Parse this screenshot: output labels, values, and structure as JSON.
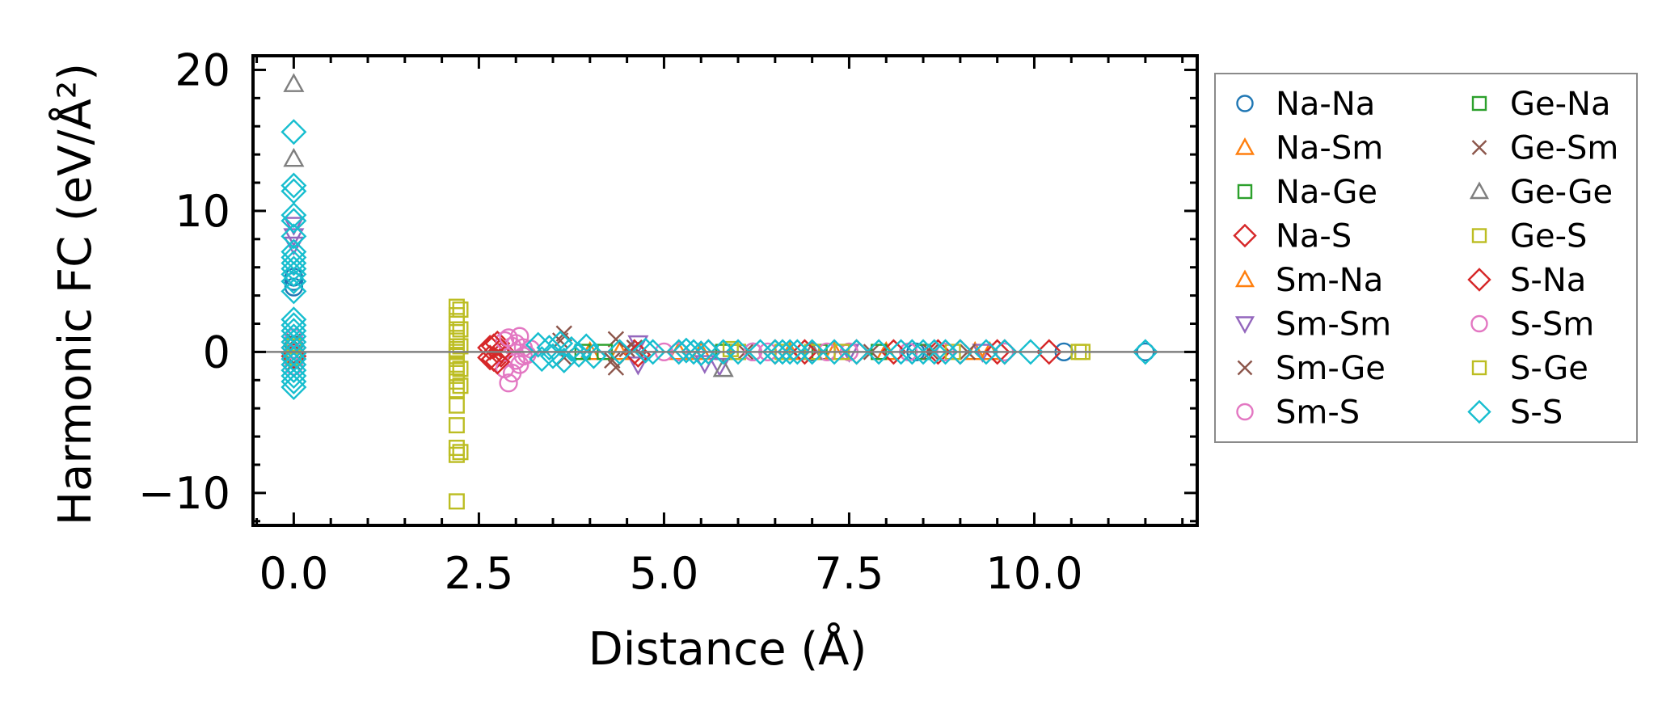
{
  "chart_data": {
    "type": "scatter",
    "title": "",
    "xlabel": "Distance (Å)",
    "ylabel": "Harmonic FC (eV/Å²)",
    "xlim": [
      -0.55,
      12.2
    ],
    "ylim": [
      -12.3,
      21.0
    ],
    "xticks": [
      "0.0",
      "2.5",
      "5.0",
      "7.5",
      "10.0"
    ],
    "yticks": [
      "−10",
      "0",
      "10",
      "20"
    ],
    "zero_line": true,
    "legend_position": "outside-right",
    "series": [
      {
        "name": "Na-Na",
        "marker": "circle",
        "color": "#1f77b4",
        "points": [
          [
            0,
            5.0
          ],
          [
            0,
            4.6
          ],
          [
            0,
            5.3
          ],
          [
            0,
            0.5
          ],
          [
            0,
            -0.5
          ],
          [
            6.2,
            0
          ],
          [
            7.0,
            0
          ],
          [
            8.4,
            0
          ],
          [
            10.4,
            0
          ],
          [
            11.5,
            0
          ]
        ]
      },
      {
        "name": "Na-Sm",
        "marker": "triangle-up",
        "color": "#ff7f0e",
        "points": [
          [
            4.0,
            0
          ],
          [
            5.5,
            0
          ],
          [
            6.7,
            0
          ],
          [
            8.0,
            0
          ],
          [
            9.2,
            0
          ]
        ]
      },
      {
        "name": "Na-Ge",
        "marker": "square",
        "color": "#2ca02c",
        "points": [
          [
            3.9,
            0
          ],
          [
            5.8,
            0
          ],
          [
            7.1,
            0
          ],
          [
            8.5,
            0
          ]
        ]
      },
      {
        "name": "Na-S",
        "marker": "diamond",
        "color": "#d62728",
        "points": [
          [
            0,
            0.3
          ],
          [
            0,
            -0.3
          ],
          [
            2.65,
            0.3
          ],
          [
            2.7,
            -0.5
          ],
          [
            2.75,
            0.6
          ],
          [
            2.8,
            -0.2
          ],
          [
            4.6,
            0
          ],
          [
            6.5,
            0
          ],
          [
            7.6,
            0
          ],
          [
            8.7,
            0
          ],
          [
            9.0,
            0
          ],
          [
            9.6,
            0
          ]
        ]
      },
      {
        "name": "Sm-Na",
        "marker": "triangle-up",
        "color": "#ff7f0e",
        "points": [
          [
            4.4,
            0
          ],
          [
            5.2,
            0
          ],
          [
            7.3,
            0
          ],
          [
            9.4,
            0
          ]
        ]
      },
      {
        "name": "Sm-Sm",
        "marker": "triangle-down",
        "color": "#9467bd",
        "points": [
          [
            0,
            9.0
          ],
          [
            0,
            8.2
          ],
          [
            0,
            7.6
          ],
          [
            4.65,
            0.6
          ],
          [
            4.65,
            -0.9
          ],
          [
            5.55,
            -0.8
          ],
          [
            5.75,
            -1.0
          ],
          [
            7.5,
            0
          ],
          [
            9.3,
            0
          ]
        ]
      },
      {
        "name": "Sm-Ge",
        "marker": "x",
        "color": "#8c564b",
        "points": [
          [
            0,
            0.8
          ],
          [
            0,
            -0.8
          ],
          [
            3.65,
            1.3
          ],
          [
            3.65,
            -0.4
          ],
          [
            4.35,
            0.9
          ],
          [
            4.35,
            -1.1
          ],
          [
            4.6,
            0.3
          ],
          [
            6.1,
            0
          ],
          [
            7.8,
            0
          ],
          [
            9.1,
            0
          ]
        ]
      },
      {
        "name": "Sm-S",
        "marker": "circle",
        "color": "#e377c2",
        "points": [
          [
            0,
            1.0
          ],
          [
            0,
            -1.0
          ],
          [
            2.85,
            0.8
          ],
          [
            2.85,
            -1.2
          ],
          [
            2.9,
            -2.2
          ],
          [
            2.95,
            0.4
          ],
          [
            3.0,
            -0.6
          ],
          [
            3.05,
            1.1
          ],
          [
            3.1,
            -0.3
          ],
          [
            3.2,
            0.2
          ],
          [
            5.2,
            0
          ],
          [
            6.4,
            0
          ],
          [
            7.2,
            0
          ],
          [
            8.3,
            0
          ],
          [
            9.6,
            0
          ]
        ]
      },
      {
        "name": "Ge-Na",
        "marker": "square",
        "color": "#2ca02c",
        "points": [
          [
            4.2,
            0
          ],
          [
            6.0,
            0
          ],
          [
            7.9,
            0
          ]
        ]
      },
      {
        "name": "Ge-Sm",
        "marker": "x",
        "color": "#8c564b",
        "points": [
          [
            3.6,
            0.8
          ],
          [
            4.3,
            -0.6
          ],
          [
            4.5,
            0.2
          ],
          [
            8.6,
            0
          ]
        ]
      },
      {
        "name": "Ge-Ge",
        "marker": "triangle-up",
        "color": "#7f7f7f",
        "points": [
          [
            0,
            19.0
          ],
          [
            0,
            13.7
          ],
          [
            5.8,
            -1.2
          ],
          [
            7.0,
            0
          ]
        ]
      },
      {
        "name": "Ge-S",
        "marker": "square",
        "color": "#bcbd22",
        "points": [
          [
            0,
            0.4
          ],
          [
            0,
            -0.4
          ],
          [
            2.2,
            3.2
          ],
          [
            2.2,
            2.6
          ],
          [
            2.2,
            2.0
          ],
          [
            2.2,
            1.4
          ],
          [
            2.2,
            0.8
          ],
          [
            2.2,
            0.2
          ],
          [
            2.2,
            -0.3
          ],
          [
            2.2,
            -0.9
          ],
          [
            2.2,
            -1.5
          ],
          [
            2.2,
            -2.1
          ],
          [
            2.2,
            -2.7
          ],
          [
            2.2,
            -3.8
          ],
          [
            2.2,
            -5.2
          ],
          [
            2.2,
            -6.8
          ],
          [
            2.2,
            -7.3
          ],
          [
            2.2,
            -10.6
          ],
          [
            2.2,
            0.0
          ],
          [
            6.0,
            0
          ],
          [
            7.0,
            0
          ],
          [
            8.9,
            0
          ],
          [
            10.6,
            0
          ]
        ]
      },
      {
        "name": "S-Na",
        "marker": "diamond",
        "color": "#d62728",
        "points": [
          [
            2.65,
            -0.4
          ],
          [
            2.7,
            0.4
          ],
          [
            2.75,
            -0.7
          ],
          [
            2.8,
            0.1
          ],
          [
            4.65,
            -0.2
          ],
          [
            5.6,
            0
          ],
          [
            6.9,
            0
          ],
          [
            8.1,
            0
          ],
          [
            9.5,
            0
          ],
          [
            10.2,
            0
          ]
        ]
      },
      {
        "name": "S-Sm",
        "marker": "circle",
        "color": "#e377c2",
        "points": [
          [
            2.9,
            1.0
          ],
          [
            2.95,
            -1.5
          ],
          [
            3.0,
            0.6
          ],
          [
            3.05,
            -0.9
          ],
          [
            3.1,
            0.3
          ],
          [
            3.15,
            -0.2
          ],
          [
            5.0,
            0
          ],
          [
            6.2,
            0
          ],
          [
            7.5,
            0
          ],
          [
            8.8,
            0
          ]
        ]
      },
      {
        "name": "S-Ge",
        "marker": "square",
        "color": "#bcbd22",
        "points": [
          [
            2.25,
            3.0
          ],
          [
            2.25,
            1.6
          ],
          [
            2.25,
            0.4
          ],
          [
            2.25,
            -1.2
          ],
          [
            2.25,
            -2.4
          ],
          [
            2.25,
            -7.1
          ],
          [
            5.9,
            0.2
          ],
          [
            6.6,
            0
          ],
          [
            7.4,
            0
          ],
          [
            10.65,
            0
          ]
        ]
      },
      {
        "name": "S-S",
        "marker": "diamond",
        "color": "#17becf",
        "points": [
          [
            0,
            15.6
          ],
          [
            0,
            11.8
          ],
          [
            0,
            11.4
          ],
          [
            0,
            9.7
          ],
          [
            0,
            9.3
          ],
          [
            0,
            8.2
          ],
          [
            0,
            7.1
          ],
          [
            0,
            6.7
          ],
          [
            0,
            6.3
          ],
          [
            0,
            5.9
          ],
          [
            0,
            5.5
          ],
          [
            0,
            5.0
          ],
          [
            0,
            4.3
          ],
          [
            0,
            2.3
          ],
          [
            0,
            1.9
          ],
          [
            0,
            1.5
          ],
          [
            0,
            1.1
          ],
          [
            0,
            0.7
          ],
          [
            0,
            0.3
          ],
          [
            0,
            -0.1
          ],
          [
            0,
            -0.5
          ],
          [
            0,
            -0.9
          ],
          [
            0,
            -1.3
          ],
          [
            0,
            -1.7
          ],
          [
            0,
            -2.1
          ],
          [
            0,
            -2.5
          ],
          [
            3.3,
            0.5
          ],
          [
            3.35,
            -0.5
          ],
          [
            3.45,
            0.3
          ],
          [
            3.5,
            -0.3
          ],
          [
            3.6,
            0.6
          ],
          [
            3.65,
            -0.6
          ],
          [
            3.75,
            0.2
          ],
          [
            3.85,
            -0.2
          ],
          [
            3.95,
            0.4
          ],
          [
            4.05,
            -0.3
          ],
          [
            4.4,
            0
          ],
          [
            4.75,
            0.1
          ],
          [
            4.85,
            0
          ],
          [
            5.2,
            0
          ],
          [
            5.3,
            0.1
          ],
          [
            5.4,
            0
          ],
          [
            5.5,
            -0.1
          ],
          [
            5.6,
            0
          ],
          [
            5.8,
            0
          ],
          [
            6.0,
            0
          ],
          [
            6.3,
            0
          ],
          [
            6.5,
            0
          ],
          [
            6.6,
            0
          ],
          [
            6.7,
            0
          ],
          [
            6.8,
            0
          ],
          [
            7.0,
            0
          ],
          [
            7.3,
            0
          ],
          [
            7.6,
            0
          ],
          [
            7.9,
            0
          ],
          [
            8.2,
            0
          ],
          [
            8.35,
            0
          ],
          [
            8.5,
            0
          ],
          [
            8.65,
            0
          ],
          [
            8.8,
            0
          ],
          [
            9.0,
            0
          ],
          [
            9.35,
            0
          ],
          [
            9.6,
            0
          ],
          [
            9.95,
            0
          ],
          [
            11.5,
            0
          ]
        ]
      }
    ]
  }
}
